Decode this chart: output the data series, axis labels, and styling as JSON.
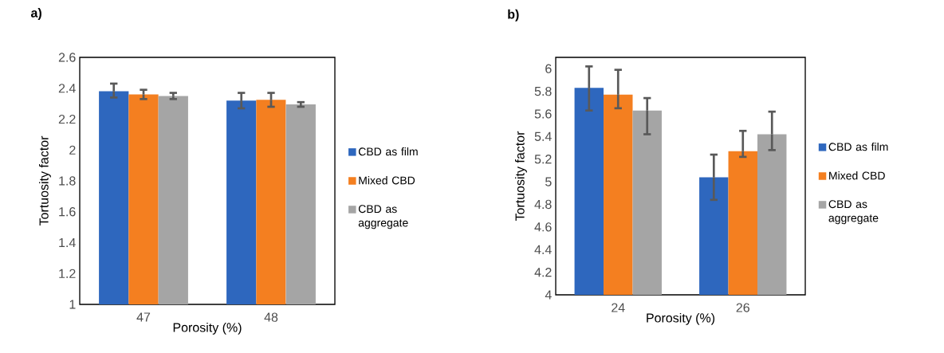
{
  "chart_data": [
    {
      "type": "bar",
      "title": "a)",
      "xlabel": "Porosity (%)",
      "ylabel": "Tortuosity factor",
      "categories": [
        "47",
        "48"
      ],
      "series": [
        {
          "name": "CBD as film",
          "color": "#2e67be",
          "values": [
            2.38,
            2.32
          ],
          "errors": [
            [
              2.34,
              2.43
            ],
            [
              2.27,
              2.37
            ]
          ]
        },
        {
          "name": "Mixed CBD",
          "color": "#f47f20",
          "values": [
            2.36,
            2.325
          ],
          "errors": [
            [
              2.33,
              2.39
            ],
            [
              2.28,
              2.37
            ]
          ]
        },
        {
          "name": "CBD as aggregate",
          "color": "#a5a5a5",
          "values": [
            2.35,
            2.295
          ],
          "errors": [
            [
              2.33,
              2.37
            ],
            [
              2.28,
              2.31
            ]
          ]
        }
      ],
      "ylim": [
        1,
        2.6
      ],
      "yticks": [
        1,
        1.2,
        1.4,
        1.6,
        1.8,
        2,
        2.2,
        2.4,
        2.6
      ],
      "legend": "right"
    },
    {
      "type": "bar",
      "title": "b)",
      "xlabel": "Porosity (%)",
      "ylabel": "Tortuosity factor",
      "categories": [
        "24",
        "26"
      ],
      "series": [
        {
          "name": "CBD as film",
          "color": "#2e67be",
          "values": [
            5.83,
            5.04
          ],
          "errors": [
            [
              5.63,
              6.02
            ],
            [
              4.84,
              5.24
            ]
          ]
        },
        {
          "name": "Mixed CBD",
          "color": "#f47f20",
          "values": [
            5.77,
            5.27
          ],
          "errors": [
            [
              5.65,
              5.99
            ],
            [
              5.22,
              5.45
            ]
          ]
        },
        {
          "name": "CBD as aggregate",
          "color": "#a5a5a5",
          "values": [
            5.63,
            5.42
          ],
          "errors": [
            [
              5.42,
              5.74
            ],
            [
              5.28,
              5.62
            ]
          ]
        }
      ],
      "ylim": [
        4,
        6.1
      ],
      "yticks": [
        4,
        4.2,
        4.4,
        4.6,
        4.8,
        5,
        5.2,
        5.4,
        5.6,
        5.8,
        6
      ],
      "legend": "right"
    }
  ]
}
